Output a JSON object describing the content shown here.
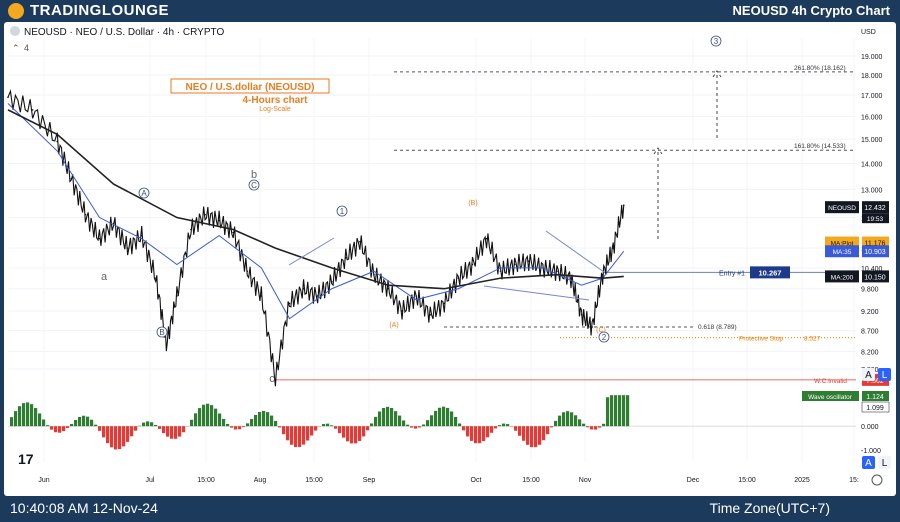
{
  "header": {
    "brand": "TRADINGLOUNGE",
    "title": "NEOUSD 4h Crypto Chart"
  },
  "legend": {
    "symbol_line": "NEOUSD · NEO / U.S. Dollar · 4h · CRYPTO",
    "indicator_count": "4"
  },
  "annotation_box": {
    "title": "NEO / U.S.dollar (NEOUSD)",
    "subtitle": "4-Hours chart",
    "note": "Log-Scale"
  },
  "footer": {
    "time": "10:40:08 AM 12-Nov-24",
    "timezone": "Time Zone(UTC+7)",
    "tv_mark": "17"
  },
  "colors": {
    "price": "#111111",
    "ma35": "#3b5bd6",
    "ma200": "#222222",
    "osc_pos": "#2e7d32",
    "osc_neg": "#e53935",
    "fib": "#555555",
    "entry": "#1e3a8a",
    "stop": "#f57c00",
    "invalid": "#e53935",
    "wave_orange": "#e67e22",
    "wave_blue": "#3b4c7a"
  },
  "chart_data": {
    "type": "line",
    "ylabel": "USD",
    "yscale": "log",
    "ylim": [
      7.0,
      20.0
    ],
    "y_ticks": [
      "19.000",
      "18.000",
      "17.000",
      "16.000",
      "15.000",
      "14.000",
      "13.000",
      "12.000",
      "11.000",
      "10.400",
      "9.800",
      "9.200",
      "8.700",
      "8.200",
      "7.800"
    ],
    "x_ticks": [
      "Jun",
      "Jul",
      "15:00",
      "Aug",
      "15:00",
      "Sep",
      "Oct",
      "15:00",
      "Nov",
      "Dec",
      "15:00",
      "2025",
      "15:"
    ],
    "price": {
      "name": "NEOUSD",
      "x": [
        "2024-05-21",
        "2024-05-28",
        "2024-06-04",
        "2024-06-08",
        "2024-06-12",
        "2024-06-16",
        "2024-06-20",
        "2024-06-24",
        "2024-06-28",
        "2024-07-02",
        "2024-07-05",
        "2024-07-08",
        "2024-07-12",
        "2024-07-16",
        "2024-07-20",
        "2024-07-24",
        "2024-07-28",
        "2024-08-01",
        "2024-08-05",
        "2024-08-09",
        "2024-08-13",
        "2024-08-17",
        "2024-08-21",
        "2024-08-25",
        "2024-08-29",
        "2024-09-02",
        "2024-09-06",
        "2024-09-10",
        "2024-09-14",
        "2024-09-18",
        "2024-09-22",
        "2024-09-26",
        "2024-09-30",
        "2024-10-04",
        "2024-10-08",
        "2024-10-12",
        "2024-10-16",
        "2024-10-20",
        "2024-10-24",
        "2024-10-28",
        "2024-10-31",
        "2024-11-03",
        "2024-11-06",
        "2024-11-09",
        "2024-11-12"
      ],
      "y": [
        16.9,
        16.3,
        14.9,
        13.4,
        12.1,
        11.3,
        11.8,
        11.0,
        11.4,
        10.1,
        8.35,
        9.6,
        11.6,
        12.1,
        11.9,
        11.5,
        10.3,
        9.6,
        7.56,
        9.4,
        9.8,
        9.6,
        10.0,
        10.7,
        11.2,
        10.2,
        9.8,
        9.2,
        9.6,
        9.1,
        9.4,
        10.1,
        10.5,
        11.3,
        10.3,
        10.5,
        10.6,
        10.4,
        10.3,
        10.1,
        9.1,
        8.79,
        10.2,
        11.0,
        12.43
      ]
    },
    "ma35": {
      "name": "MA:35",
      "x": [
        "2024-05-21",
        "2024-06-04",
        "2024-06-16",
        "2024-06-28",
        "2024-07-08",
        "2024-07-20",
        "2024-08-01",
        "2024-08-09",
        "2024-08-21",
        "2024-09-02",
        "2024-09-14",
        "2024-09-26",
        "2024-10-08",
        "2024-10-20",
        "2024-10-31",
        "2024-11-06",
        "2024-11-12"
      ],
      "y": [
        16.6,
        14.5,
        12.0,
        11.3,
        10.5,
        11.4,
        10.4,
        9.0,
        9.8,
        10.3,
        9.5,
        9.8,
        10.4,
        10.4,
        9.9,
        10.1,
        10.903
      ]
    },
    "ma200": {
      "name": "MA:200",
      "x": [
        "2024-05-21",
        "2024-06-04",
        "2024-06-20",
        "2024-07-08",
        "2024-07-24",
        "2024-08-05",
        "2024-08-21",
        "2024-09-06",
        "2024-09-22",
        "2024-10-08",
        "2024-10-24",
        "2024-11-06",
        "2024-11-12"
      ],
      "y": [
        16.3,
        15.2,
        13.2,
        12.0,
        11.6,
        11.0,
        10.4,
        9.9,
        9.8,
        10.1,
        10.2,
        10.1,
        10.15
      ]
    },
    "levels": [
      {
        "label": "261.80% (18.162)",
        "value": 18.162
      },
      {
        "label": "161.80% (14.533)",
        "value": 14.533
      },
      {
        "label": "0.618 (8.789)",
        "value": 8.789
      },
      {
        "label": "Entry #1",
        "value": 10.267
      },
      {
        "label": "Protective Stop",
        "value": 8.527
      },
      {
        "label": "W.C.Invalid",
        "value": 7.562
      }
    ],
    "price_tags": [
      {
        "label": "NEOUSD",
        "value": "12.432",
        "sub": "19:53"
      },
      {
        "label": "MA:Plot",
        "value": "11.176"
      },
      {
        "label": "MA:35",
        "value": "10.903"
      },
      {
        "label": "MA:200",
        "value": "10.150"
      },
      {
        "label": "Entry #1",
        "value": "10.267"
      },
      {
        "label": "Protective Stop",
        "value": "8.527"
      },
      {
        "label": "W.C.Invalid",
        "value": "7.562"
      }
    ],
    "wave_labels": [
      "a",
      "b",
      "c",
      "A",
      "B",
      "C",
      "1",
      "2",
      "3",
      "(A)",
      "(B)",
      "(C)"
    ],
    "oscillator": {
      "name": "Wave oscillator",
      "value": "1.124",
      "value2": "1.099",
      "y_ticks": [
        "0.000",
        "-1.000"
      ],
      "ylim": [
        -1.5,
        1.6
      ]
    },
    "scale_buttons": [
      "A",
      "L"
    ],
    "scale_buttons_osc": [
      "A",
      "L"
    ]
  }
}
